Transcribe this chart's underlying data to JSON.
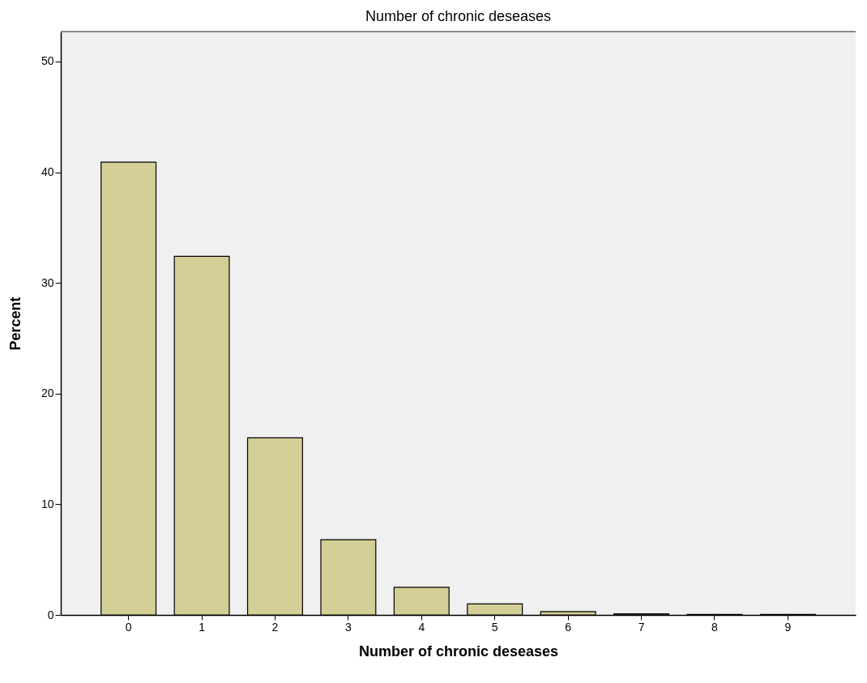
{
  "chart_data": {
    "type": "bar",
    "title": "Number of chronic deseases",
    "xlabel": "Number of chronic deseases",
    "ylabel": "Percent",
    "categories": [
      "0",
      "1",
      "2",
      "3",
      "4",
      "5",
      "6",
      "7",
      "8",
      "9"
    ],
    "values": [
      40.9,
      32.4,
      16.0,
      6.8,
      2.5,
      1.0,
      0.3,
      0.1,
      0.05,
      0.05
    ],
    "color": "#d3cf96",
    "ylim": [
      0,
      52.7
    ],
    "yticks": [
      0,
      10,
      20,
      30,
      40,
      50
    ],
    "grid": false
  }
}
